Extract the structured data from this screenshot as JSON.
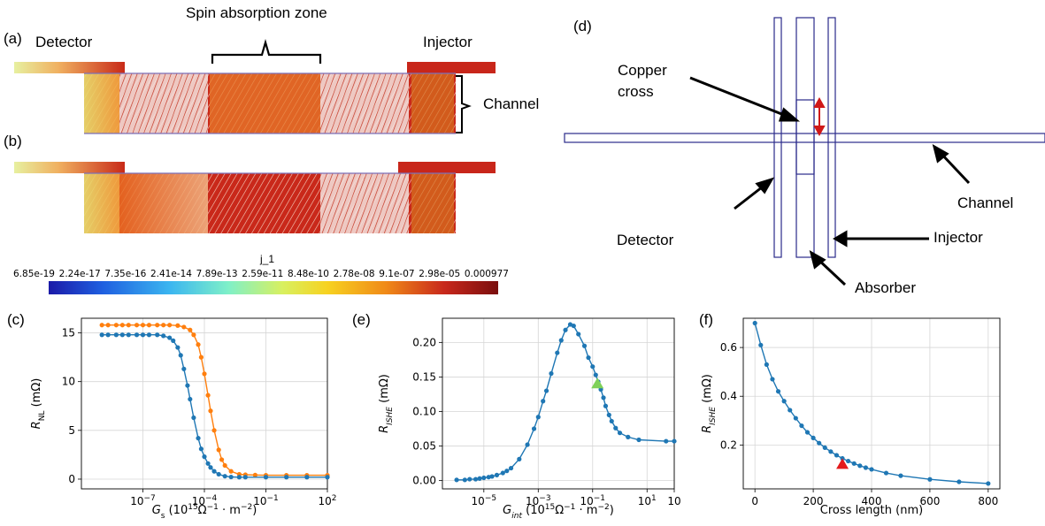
{
  "panel_labels": {
    "a": "(a)",
    "b": "(b)",
    "c": "(c)",
    "d": "(d)",
    "e": "(e)",
    "f": "(f)"
  },
  "simulation": {
    "spin_absorption_zone": "Spin absorption zone",
    "detector": "Detector",
    "injector": "Injector",
    "channel": "Channel",
    "colorbar_title": "j_1",
    "colorbar_ticks": [
      "6.85e-19",
      "2.24e-17",
      "7.35e-16",
      "2.41e-14",
      "7.89e-13",
      "2.59e-11",
      "8.48e-10",
      "2.78e-08",
      "9.1e-07",
      "2.98e-05",
      "0.000977"
    ]
  },
  "schematic": {
    "copper_cross": "Copper cross",
    "channel": "Channel",
    "detector": "Detector",
    "injector": "Injector",
    "absorber": "Absorber"
  },
  "chart_data": [
    {
      "id": "c",
      "type": "line",
      "xscale": "log",
      "xlabel": "G_s (10^15 Ω^-1 · m^-2)",
      "ylabel": "R_NL (mΩ)",
      "xlim": [
        1e-10,
        100
      ],
      "ylim": [
        -1,
        16.5
      ],
      "xticks": [
        {
          "value": 1e-07,
          "label": "10",
          "exp": "−7"
        },
        {
          "value": 0.0001,
          "label": "10",
          "exp": "−4"
        },
        {
          "value": 0.1,
          "label": "10",
          "exp": "−1"
        },
        {
          "value": 100,
          "label": "10",
          "exp": "2"
        }
      ],
      "yticks": [
        0,
        5,
        10,
        15
      ],
      "grid": true,
      "series": [
        {
          "color": "#ff7f0e",
          "x": [
            1e-09,
            2e-09,
            5e-09,
            1e-08,
            2e-08,
            5e-08,
            1e-07,
            2e-07,
            5e-07,
            1e-06,
            2e-06,
            5e-06,
            1e-05,
            2e-05,
            3e-05,
            5e-05,
            7e-05,
            0.0001,
            0.00015,
            0.0002,
            0.0003,
            0.0005,
            0.0007,
            0.001,
            0.002,
            0.005,
            0.01,
            0.03,
            0.1,
            1,
            10,
            100
          ],
          "y": [
            15.8,
            15.8,
            15.8,
            15.8,
            15.8,
            15.8,
            15.8,
            15.8,
            15.8,
            15.8,
            15.8,
            15.75,
            15.6,
            15.3,
            14.8,
            13.8,
            12.5,
            10.8,
            8.6,
            7.0,
            5.0,
            3.0,
            2.0,
            1.4,
            0.8,
            0.5,
            0.45,
            0.42,
            0.4,
            0.4,
            0.4,
            0.4
          ]
        },
        {
          "color": "#1f77b4",
          "x": [
            1e-09,
            2e-09,
            5e-09,
            1e-08,
            2e-08,
            5e-08,
            1e-07,
            2e-07,
            5e-07,
            1e-06,
            2e-06,
            3e-06,
            5e-06,
            7e-06,
            1e-05,
            1.5e-05,
            2e-05,
            3e-05,
            5e-05,
            7e-05,
            0.0001,
            0.00015,
            0.0002,
            0.0003,
            0.0005,
            0.001,
            0.002,
            0.005,
            0.01,
            0.1,
            1,
            10,
            100
          ],
          "y": [
            14.8,
            14.8,
            14.8,
            14.8,
            14.8,
            14.8,
            14.8,
            14.8,
            14.8,
            14.7,
            14.5,
            14.2,
            13.5,
            12.7,
            11.3,
            9.6,
            8.2,
            6.3,
            4.2,
            3.1,
            2.3,
            1.6,
            1.2,
            0.8,
            0.5,
            0.3,
            0.22,
            0.2,
            0.2,
            0.2,
            0.2,
            0.2,
            0.2
          ]
        }
      ]
    },
    {
      "id": "e",
      "type": "line",
      "xscale": "log",
      "xlabel": "G_int (10^15 Ω^-1 · m^-2)",
      "ylabel": "R_ISHE (mΩ)",
      "xlim": [
        3e-07,
        100
      ],
      "ylim": [
        -0.012,
        0.235
      ],
      "xticks": [
        {
          "value": 1e-05,
          "label": "10",
          "exp": "−5"
        },
        {
          "value": 0.001,
          "label": "10",
          "exp": "−3"
        },
        {
          "value": 0.1,
          "label": "10",
          "exp": "−1"
        },
        {
          "value": 10,
          "label": "10",
          "exp": "1"
        },
        {
          "value": 100,
          "label": "10",
          "exp": ""
        }
      ],
      "yticks": [
        0.0,
        0.05,
        0.1,
        0.15,
        0.2
      ],
      "ytick_labels": [
        "0.00",
        "0.05",
        "0.10",
        "0.15",
        "0.20"
      ],
      "grid": true,
      "marker": {
        "x": 0.15,
        "y": 0.14,
        "color": "#7fd15a",
        "shape": "triangle"
      },
      "series": [
        {
          "color": "#1f77b4",
          "x": [
            1e-06,
            2e-06,
            3e-06,
            5e-06,
            7e-06,
            1e-05,
            1.5e-05,
            2e-05,
            3e-05,
            5e-05,
            7e-05,
            0.0001,
            0.0002,
            0.0004,
            0.0007,
            0.001,
            0.0015,
            0.002,
            0.003,
            0.005,
            0.007,
            0.01,
            0.015,
            0.02,
            0.03,
            0.05,
            0.07,
            0.1,
            0.13,
            0.16,
            0.2,
            0.25,
            0.3,
            0.4,
            0.5,
            0.7,
            1,
            2,
            5,
            50,
            100
          ],
          "y": [
            0.001,
            0.001,
            0.002,
            0.002,
            0.003,
            0.004,
            0.005,
            0.006,
            0.008,
            0.011,
            0.014,
            0.018,
            0.031,
            0.052,
            0.075,
            0.092,
            0.115,
            0.13,
            0.155,
            0.185,
            0.203,
            0.218,
            0.226,
            0.224,
            0.212,
            0.195,
            0.178,
            0.165,
            0.153,
            0.143,
            0.132,
            0.12,
            0.108,
            0.095,
            0.086,
            0.076,
            0.069,
            0.063,
            0.059,
            0.057,
            0.057
          ]
        }
      ]
    },
    {
      "id": "f",
      "type": "line",
      "xscale": "linear",
      "xlabel": "Cross length (nm)",
      "ylabel": "R_ISHE (mΩ)",
      "xlim": [
        -40,
        840
      ],
      "ylim": [
        0.02,
        0.72
      ],
      "xticks": [
        0,
        200,
        400,
        600,
        800
      ],
      "yticks": [
        0.2,
        0.4,
        0.6
      ],
      "grid": true,
      "marker": {
        "x": 300,
        "y": 0.12,
        "color": "#e31a1c",
        "shape": "triangle"
      },
      "series": [
        {
          "color": "#1f77b4",
          "x": [
            0,
            20,
            40,
            60,
            80,
            100,
            120,
            140,
            160,
            180,
            200,
            220,
            240,
            260,
            280,
            300,
            320,
            340,
            360,
            380,
            400,
            450,
            500,
            600,
            700,
            800
          ],
          "y": [
            0.7,
            0.61,
            0.53,
            0.47,
            0.42,
            0.38,
            0.343,
            0.31,
            0.279,
            0.252,
            0.229,
            0.208,
            0.189,
            0.173,
            0.158,
            0.145,
            0.134,
            0.124,
            0.115,
            0.107,
            0.1,
            0.085,
            0.074,
            0.059,
            0.049,
            0.042
          ]
        }
      ]
    }
  ]
}
